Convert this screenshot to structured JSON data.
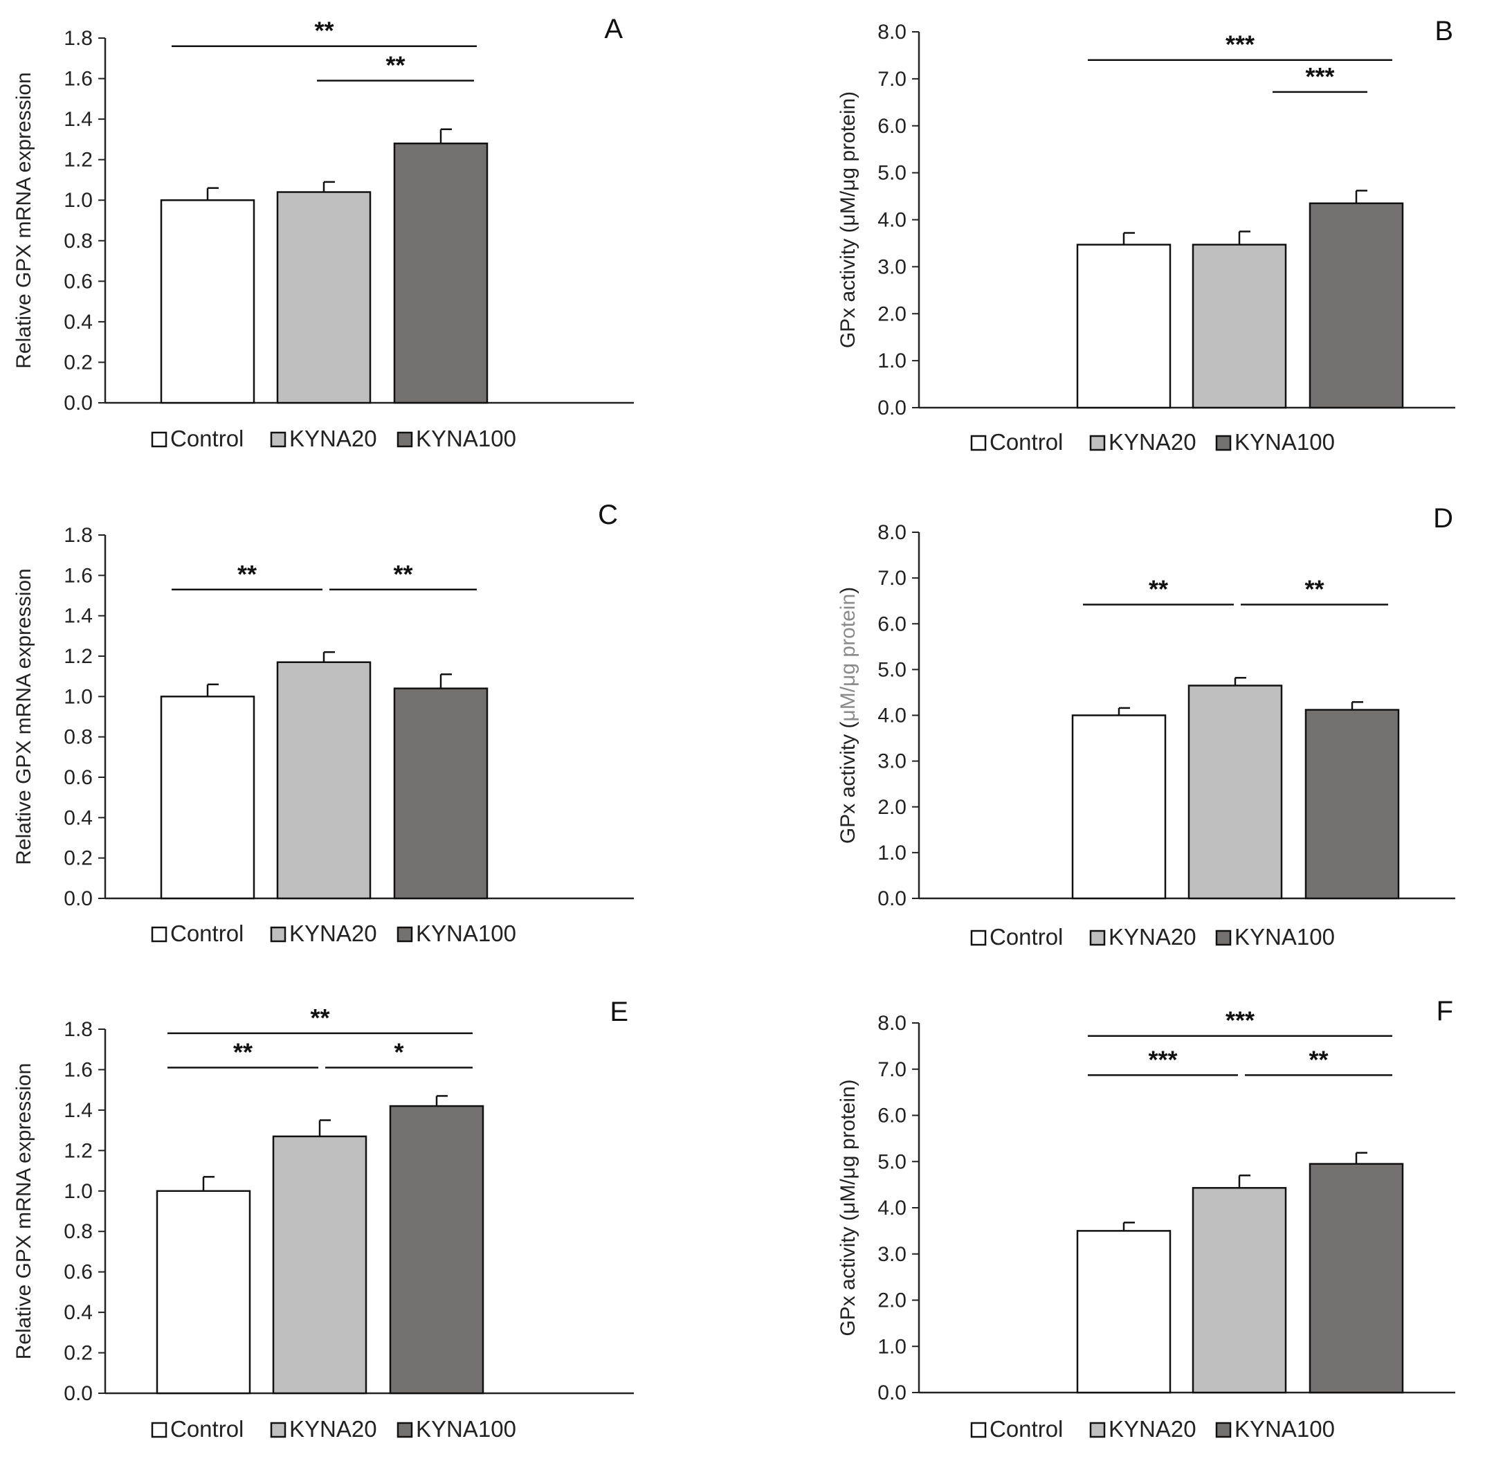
{
  "colors": {
    "Control": "#ffffff",
    "KYNA20": "#bfbfbf",
    "KYNA100": "#767171",
    "stroke": "#111111"
  },
  "legend": [
    "Control",
    "KYNA20",
    "KYNA100"
  ],
  "chart_data": [
    {
      "panel": "A",
      "type": "bar",
      "ylabel": "Relative  GPX mRNA expression",
      "ylim": [
        0,
        1.8
      ],
      "ticks": [
        "0.0",
        "0.2",
        "0.4",
        "0.6",
        "0.8",
        "1.0",
        "1.2",
        "1.4",
        "1.6",
        "1.8"
      ],
      "categories": [
        "Control",
        "KYNA20",
        "KYNA100"
      ],
      "values": [
        1.0,
        1.04,
        1.28
      ],
      "errors": [
        0.06,
        0.05,
        0.07
      ],
      "sig": [
        {
          "from": 0,
          "to": 2,
          "label": "**",
          "y": 1.76
        },
        {
          "from": 1,
          "to": 2,
          "label": "**",
          "y": 1.59
        }
      ]
    },
    {
      "panel": "B",
      "type": "bar",
      "ylabel": "GPx activity  (μM/μg protein)",
      "ylim": [
        0,
        8.0
      ],
      "ticks": [
        "0.0",
        "1.0",
        "2.0",
        "3.0",
        "4.0",
        "5.0",
        "6.0",
        "7.0",
        "8.0"
      ],
      "categories": [
        "Control",
        "KYNA20",
        "KYNA100"
      ],
      "values": [
        3.47,
        3.47,
        4.35
      ],
      "errors": [
        0.25,
        0.28,
        0.27
      ],
      "sig": [
        {
          "from": 0,
          "to": 2,
          "label": "***",
          "y": 7.4
        },
        {
          "from": 1,
          "to": 2,
          "label": "***",
          "y": 6.72
        }
      ]
    },
    {
      "panel": "C",
      "type": "bar",
      "ylabel": "Relative  GPX mRNA expression",
      "ylim": [
        0,
        1.8
      ],
      "ticks": [
        "0.0",
        "0.2",
        "0.4",
        "0.6",
        "0.8",
        "1.0",
        "1.2",
        "1.4",
        "1.6",
        "1.8"
      ],
      "categories": [
        "Control",
        "KYNA20",
        "KYNA100"
      ],
      "values": [
        1.0,
        1.17,
        1.04
      ],
      "errors": [
        0.06,
        0.05,
        0.07
      ],
      "sig": [
        {
          "from": 0,
          "to": 1,
          "label": "**",
          "y": 1.53
        },
        {
          "from": 1,
          "to": 2,
          "label": "**",
          "y": 1.53
        }
      ]
    },
    {
      "panel": "D",
      "type": "bar",
      "ylabel": "GPx activity  (μM/μg protein)",
      "ylabel_parts": [
        "GPx activity  (",
        "μM/μg protein",
        ")"
      ],
      "ylim": [
        0,
        8.0
      ],
      "ticks": [
        "0.0",
        "1.0",
        "2.0",
        "3.0",
        "4.0",
        "5.0",
        "6.0",
        "7.0",
        "8.0"
      ],
      "categories": [
        "Control",
        "KYNA20",
        "KYNA100"
      ],
      "values": [
        4.0,
        4.65,
        4.12
      ],
      "errors": [
        0.16,
        0.17,
        0.17
      ],
      "sig": [
        {
          "from": 0,
          "to": 1,
          "label": "**",
          "y": 6.42
        },
        {
          "from": 1,
          "to": 2,
          "label": "**",
          "y": 6.42
        }
      ]
    },
    {
      "panel": "E",
      "type": "bar",
      "ylabel": "Relative  GPX mRNA expression",
      "ylim": [
        0,
        1.8
      ],
      "ticks": [
        "0.0",
        "0.2",
        "0.4",
        "0.6",
        "0.8",
        "1.0",
        "1.2",
        "1.4",
        "1.6",
        "1.8"
      ],
      "categories": [
        "Control",
        "KYNA20",
        "KYNA100"
      ],
      "values": [
        1.0,
        1.27,
        1.42
      ],
      "errors": [
        0.07,
        0.08,
        0.05
      ],
      "sig": [
        {
          "from": 0,
          "to": 2,
          "label": "**",
          "y": 1.78
        },
        {
          "from": 0,
          "to": 1,
          "label": "**",
          "y": 1.61
        },
        {
          "from": 1,
          "to": 2,
          "label": "*",
          "y": 1.61
        }
      ]
    },
    {
      "panel": "F",
      "type": "bar",
      "ylabel": "GPx activity  (μM/μg protein)",
      "ylim": [
        0,
        8.0
      ],
      "ticks": [
        "0.0",
        "1.0",
        "2.0",
        "3.0",
        "4.0",
        "5.0",
        "6.0",
        "7.0",
        "8.0"
      ],
      "categories": [
        "Control",
        "KYNA20",
        "KYNA100"
      ],
      "values": [
        3.5,
        4.43,
        4.95
      ],
      "errors": [
        0.18,
        0.27,
        0.24
      ],
      "sig": [
        {
          "from": 0,
          "to": 2,
          "label": "***",
          "y": 7.72
        },
        {
          "from": 0,
          "to": 1,
          "label": "***",
          "y": 6.87
        },
        {
          "from": 1,
          "to": 2,
          "label": "**",
          "y": 6.87
        }
      ]
    }
  ]
}
